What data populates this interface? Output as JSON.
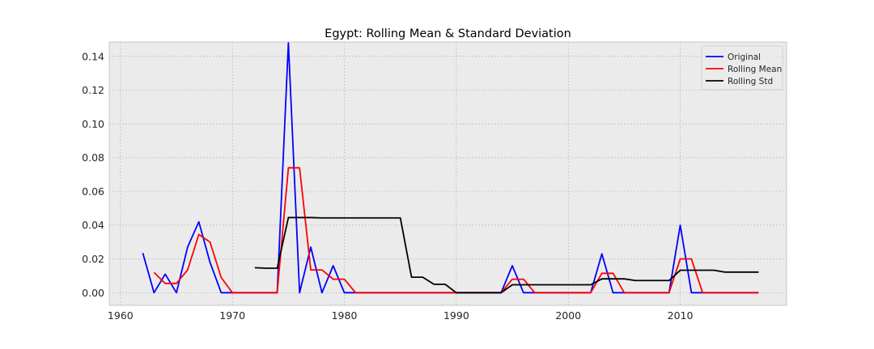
{
  "chart_data": {
    "type": "line",
    "title": "Egypt: Rolling Mean & Standard Deviation",
    "xlabel": "",
    "ylabel": "",
    "xlim": [
      1959,
      2019.5
    ],
    "ylim": [
      -0.0075,
      0.1485
    ],
    "xticks": [
      1960,
      1970,
      1980,
      1990,
      2000,
      2010
    ],
    "yticks": [
      0.0,
      0.02,
      0.04,
      0.06,
      0.08,
      0.1,
      0.12,
      0.14
    ],
    "ytick_labels": [
      "0.00",
      "0.02",
      "0.04",
      "0.06",
      "0.08",
      "0.10",
      "0.12",
      "0.14"
    ],
    "grid": true,
    "legend_position": "top-right",
    "series": [
      {
        "name": "Original",
        "color": "#0000ff",
        "x": [
          1962,
          1963,
          1964,
          1965,
          1966,
          1967,
          1968,
          1969,
          1970,
          1971,
          1972,
          1973,
          1974,
          1975,
          1976,
          1977,
          1978,
          1979,
          1980,
          1981,
          1982,
          1983,
          1984,
          1985,
          1986,
          1987,
          1988,
          1989,
          1990,
          1991,
          1992,
          1993,
          1994,
          1995,
          1996,
          1997,
          1998,
          1999,
          2000,
          2001,
          2002,
          2003,
          2004,
          2005,
          2006,
          2007,
          2008,
          2009,
          2010,
          2011,
          2012,
          2013,
          2014,
          2015,
          2016,
          2017
        ],
        "y": [
          0.0235,
          0.0,
          0.011,
          0.0,
          0.027,
          0.042,
          0.018,
          0.0,
          0.0,
          0.0,
          0.0,
          0.0,
          0.0,
          0.148,
          0.0,
          0.027,
          0.0,
          0.016,
          0.0,
          0.0,
          0.0,
          0.0,
          0.0,
          0.0,
          0.0,
          0.0,
          0.0,
          0.0,
          0.0,
          0.0,
          0.0,
          0.0,
          0.0,
          0.016,
          0.0,
          0.0,
          0.0,
          0.0,
          0.0,
          0.0,
          0.0,
          0.023,
          0.0,
          0.0,
          0.0,
          0.0,
          0.0,
          0.0,
          0.04,
          0.0,
          0.0,
          0.0,
          0.0,
          0.0,
          0.0,
          0.0
        ]
      },
      {
        "name": "Rolling Mean",
        "color": "#ff0000",
        "x": [
          1963,
          1964,
          1965,
          1966,
          1967,
          1968,
          1969,
          1970,
          1971,
          1972,
          1973,
          1974,
          1975,
          1976,
          1977,
          1978,
          1979,
          1980,
          1981,
          1982,
          1983,
          1984,
          1985,
          1986,
          1987,
          1988,
          1989,
          1990,
          1991,
          1992,
          1993,
          1994,
          1995,
          1996,
          1997,
          1998,
          1999,
          2000,
          2001,
          2002,
          2003,
          2004,
          2005,
          2006,
          2007,
          2008,
          2009,
          2010,
          2011,
          2012,
          2013,
          2014,
          2015,
          2016,
          2017
        ],
        "y": [
          0.012,
          0.0055,
          0.0055,
          0.0135,
          0.0345,
          0.03,
          0.009,
          0.0,
          0.0,
          0.0,
          0.0,
          0.0,
          0.074,
          0.074,
          0.0135,
          0.0135,
          0.008,
          0.008,
          0.0,
          0.0,
          0.0,
          0.0,
          0.0,
          0.0,
          0.0,
          0.0,
          0.0,
          0.0,
          0.0,
          0.0,
          0.0,
          0.0,
          0.008,
          0.008,
          0.0,
          0.0,
          0.0,
          0.0,
          0.0,
          0.0,
          0.0115,
          0.0115,
          0.0,
          0.0,
          0.0,
          0.0,
          0.0,
          0.02,
          0.02,
          0.0,
          0.0,
          0.0,
          0.0,
          0.0,
          0.0
        ]
      },
      {
        "name": "Rolling Std",
        "color": "#000000",
        "x": [
          1972,
          1973,
          1974,
          1975,
          1976,
          1977,
          1978,
          1979,
          1980,
          1981,
          1982,
          1983,
          1984,
          1985,
          1986,
          1987,
          1988,
          1989,
          1990,
          1991,
          1992,
          1993,
          1994,
          1995,
          1996,
          1997,
          1998,
          1999,
          2000,
          2001,
          2002,
          2003,
          2004,
          2005,
          2006,
          2007,
          2008,
          2009,
          2010,
          2011,
          2012,
          2013,
          2014,
          2015,
          2016,
          2017
        ],
        "y": [
          0.0148,
          0.0145,
          0.0145,
          0.0445,
          0.0445,
          0.0445,
          0.0443,
          0.0443,
          0.0443,
          0.0443,
          0.0443,
          0.0443,
          0.0443,
          0.0443,
          0.0092,
          0.0092,
          0.005,
          0.005,
          0.0,
          0.0,
          0.0,
          0.0,
          0.0,
          0.0047,
          0.0047,
          0.0047,
          0.0047,
          0.0047,
          0.0047,
          0.0047,
          0.0047,
          0.0082,
          0.0082,
          0.0082,
          0.0072,
          0.0072,
          0.0072,
          0.0072,
          0.0133,
          0.0133,
          0.0133,
          0.0133,
          0.0122,
          0.0122,
          0.0122,
          0.0122
        ]
      }
    ]
  }
}
